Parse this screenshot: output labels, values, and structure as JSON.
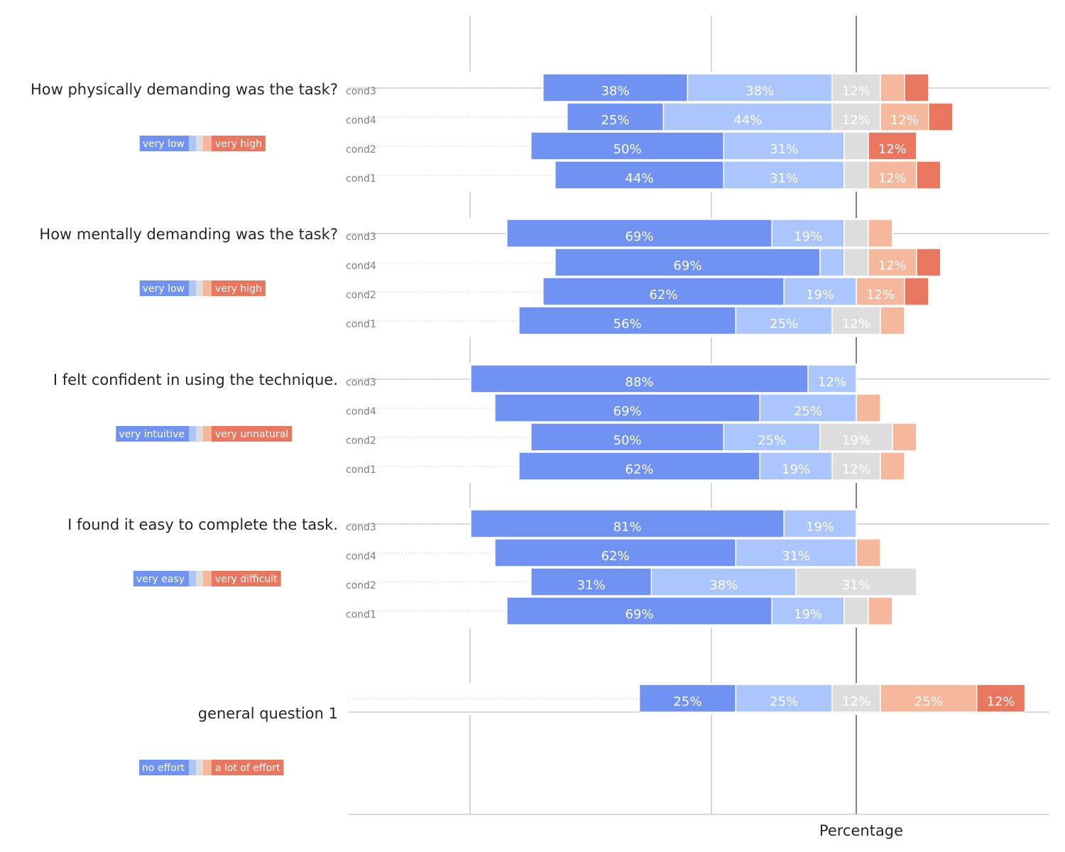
{
  "chart_data": {
    "type": "bar",
    "orientation": "horizontal",
    "stacking": "diverging",
    "xlabel": "Percentage",
    "ylabel": "",
    "grid": true,
    "colors": {
      "level1": "#7092f2",
      "level2": "#aac6fc",
      "level3": "#dddddd",
      "level4": "#f6b89c",
      "level5": "#e9775f",
      "grid": "#cccccc",
      "center_line": "#808080",
      "row_guide": "#d9d9d9"
    },
    "questions": [
      {
        "title": "How physically demanding was the task?",
        "legend": {
          "low": "very low",
          "high": "very high"
        },
        "rows": [
          {
            "label": "cond3",
            "values": [
              37.5,
              37.5,
              12.5,
              6.25,
              6.25
            ],
            "labels": [
              "38%",
              "38%",
              "12%",
              "",
              ""
            ]
          },
          {
            "label": "cond4",
            "values": [
              25,
              43.75,
              12.5,
              12.5,
              6.25
            ],
            "labels": [
              "25%",
              "44%",
              "12%",
              "12%",
              ""
            ]
          },
          {
            "label": "cond2",
            "values": [
              50,
              31.25,
              6.25,
              0,
              12.5
            ],
            "labels": [
              "50%",
              "31%",
              "",
              "",
              "12%"
            ]
          },
          {
            "label": "cond1",
            "values": [
              43.75,
              31.25,
              6.25,
              12.5,
              6.25
            ],
            "labels": [
              "44%",
              "31%",
              "",
              "12%",
              ""
            ]
          }
        ]
      },
      {
        "title": "How mentally demanding was the task?",
        "legend": {
          "low": "very low",
          "high": "very high"
        },
        "rows": [
          {
            "label": "cond3",
            "values": [
              68.75,
              18.75,
              6.25,
              6.25,
              0
            ],
            "labels": [
              "69%",
              "19%",
              "",
              "",
              ""
            ]
          },
          {
            "label": "cond4",
            "values": [
              68.75,
              6.25,
              6.25,
              12.5,
              6.25
            ],
            "labels": [
              "69%",
              "",
              "",
              "12%",
              ""
            ]
          },
          {
            "label": "cond2",
            "values": [
              62.5,
              18.75,
              0,
              12.5,
              6.25
            ],
            "labels": [
              "62%",
              "19%",
              "",
              "12%",
              ""
            ]
          },
          {
            "label": "cond1",
            "values": [
              56.25,
              25,
              12.5,
              6.25,
              0
            ],
            "labels": [
              "56%",
              "25%",
              "12%",
              "",
              ""
            ]
          }
        ]
      },
      {
        "title": "I felt confident in using the technique.",
        "legend": {
          "low": "very intuitive",
          "high": "very unnatural"
        },
        "rows": [
          {
            "label": "cond3",
            "values": [
              87.5,
              12.5,
              0,
              0,
              0
            ],
            "labels": [
              "88%",
              "12%",
              "",
              "",
              ""
            ]
          },
          {
            "label": "cond4",
            "values": [
              68.75,
              25,
              0,
              6.25,
              0
            ],
            "labels": [
              "69%",
              "25%",
              "",
              "",
              ""
            ]
          },
          {
            "label": "cond2",
            "values": [
              50,
              25,
              18.75,
              6.25,
              0
            ],
            "labels": [
              "50%",
              "25%",
              "19%",
              "",
              ""
            ]
          },
          {
            "label": "cond1",
            "values": [
              62.5,
              18.75,
              12.5,
              6.25,
              0
            ],
            "labels": [
              "62%",
              "19%",
              "12%",
              "",
              ""
            ]
          }
        ]
      },
      {
        "title": "I found it easy to complete the task.",
        "legend": {
          "low": "very easy",
          "high": "very difficult"
        },
        "rows": [
          {
            "label": "cond3",
            "values": [
              81.25,
              18.75,
              0,
              0,
              0
            ],
            "labels": [
              "81%",
              "19%",
              "",
              "",
              ""
            ]
          },
          {
            "label": "cond4",
            "values": [
              62.5,
              31.25,
              0,
              6.25,
              0
            ],
            "labels": [
              "62%",
              "31%",
              "",
              "",
              ""
            ]
          },
          {
            "label": "cond2",
            "values": [
              31.25,
              37.5,
              31.25,
              0,
              0
            ],
            "labels": [
              "31%",
              "38%",
              "31%",
              "",
              ""
            ]
          },
          {
            "label": "cond1",
            "values": [
              68.75,
              18.75,
              6.25,
              6.25,
              0
            ],
            "labels": [
              "69%",
              "19%",
              "",
              "",
              ""
            ]
          }
        ]
      },
      {
        "title": "general question 1",
        "legend": {
          "low": "no effort",
          "high": "a lot of effort"
        },
        "rows": [
          {
            "label": "",
            "values": [
              25,
              25,
              12.5,
              25,
              12.5
            ],
            "labels": [
              "25%",
              "25%",
              "12%",
              "25%",
              "12%"
            ]
          }
        ]
      }
    ]
  }
}
